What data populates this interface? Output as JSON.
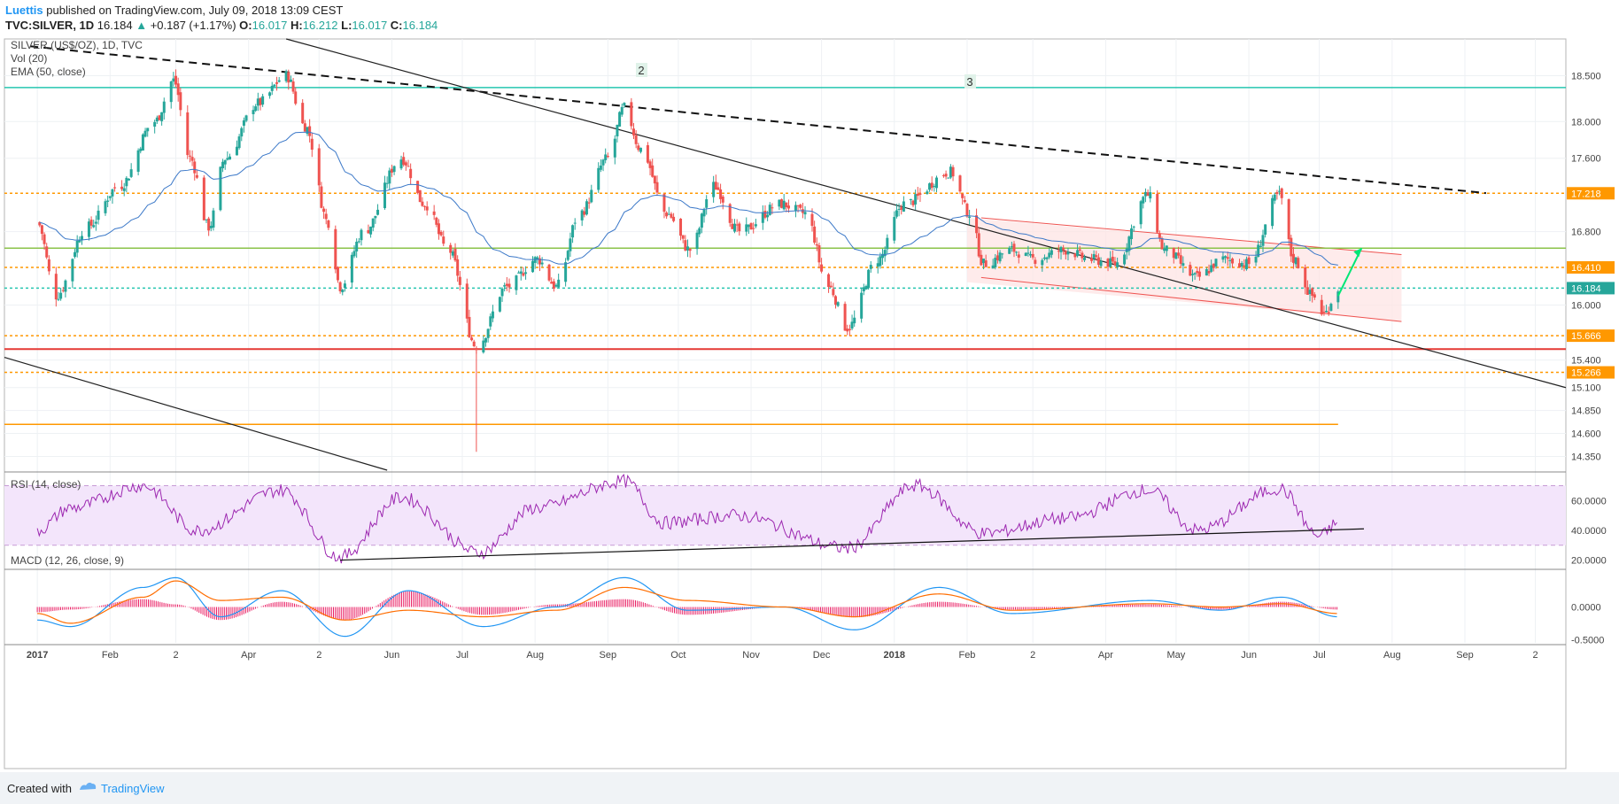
{
  "header": {
    "author": "Luettis",
    "published": "published on TradingView.com, July 09, 2018 13:09 CEST",
    "symbol": "TVC:SILVER, 1D",
    "last": "16.184",
    "change_arrow": "▲",
    "change": "+0.187 (+1.17%)",
    "o_label": "O:",
    "o": "16.017",
    "h_label": "H:",
    "h": "16.212",
    "l_label": "L:",
    "l": "16.017",
    "c_label": "C:",
    "c": "16.184"
  },
  "legend": {
    "main": "SILVER (US$/OZ), 1D, TVC",
    "vol": "Vol (20)",
    "ema": "EMA (50, close)",
    "rsi": "RSI (14, close)",
    "macd": "MACD (12, 26, close, 9)"
  },
  "annotations": {
    "wave2": "2",
    "wave3": "3"
  },
  "footer": {
    "created": "Created with",
    "brand": "TradingView"
  },
  "colors": {
    "up": "#26a69a",
    "down": "#ef5350",
    "ema": "#3b78c8",
    "level_orange": "#ff9800",
    "resistance_teal": "#26c6b0",
    "support_red": "#e53935",
    "green_line": "#8bc34a",
    "channel_fill": "#fde4e4",
    "rsi_line": "#9c27b0",
    "rsi_band": "#f3e5fb",
    "macd_line": "#2196f3",
    "signal_line": "#ff6d00",
    "hist": "#e91e63"
  },
  "chart_data": [
    {
      "type": "candlestick",
      "title": "SILVER (US$/OZ), 1D, TVC",
      "x_ticks": [
        "2017",
        "Feb",
        "2",
        "Apr",
        "2",
        "Jun",
        "Jul",
        "Aug",
        "Sep",
        "Oct",
        "Nov",
        "Dec",
        "2018",
        "Feb",
        "2",
        "Apr",
        "May",
        "Jun",
        "Jul",
        "Aug",
        "Sep",
        "2"
      ],
      "y_ticks": [
        "18.500",
        "18.000",
        "17.600",
        "16.800",
        "16.000",
        "15.400",
        "15.100",
        "14.850",
        "14.600",
        "14.350"
      ],
      "ylim": [
        14.2,
        18.9
      ],
      "horizontal_levels": [
        {
          "value": 18.37,
          "style": "solid",
          "color": "teal"
        },
        {
          "value": 17.218,
          "style": "dotted",
          "color": "orange",
          "label": "17.218"
        },
        {
          "value": 16.62,
          "style": "solid",
          "color": "green"
        },
        {
          "value": 16.41,
          "style": "dotted",
          "color": "orange",
          "label": "16.410"
        },
        {
          "value": 16.184,
          "style": "dotted",
          "color": "teal",
          "label": "16.184"
        },
        {
          "value": 15.666,
          "style": "dotted",
          "color": "orange",
          "label": "15.666"
        },
        {
          "value": 15.52,
          "style": "solid",
          "color": "red"
        },
        {
          "value": 15.266,
          "style": "dotted",
          "color": "orange",
          "label": "15.266"
        },
        {
          "value": 14.7,
          "style": "solid",
          "color": "orange"
        }
      ],
      "anchor_points": [
        {
          "date": "2017-01-01",
          "close": 16.9
        },
        {
          "date": "2017-01-09",
          "close": 16.1
        },
        {
          "date": "2017-01-22",
          "close": 16.85
        },
        {
          "date": "2017-02-05",
          "close": 17.3
        },
        {
          "date": "2017-02-20",
          "close": 18.0
        },
        {
          "date": "2017-02-28",
          "close": 18.45
        },
        {
          "date": "2017-03-07",
          "close": 17.6
        },
        {
          "date": "2017-03-15",
          "close": 16.85
        },
        {
          "date": "2017-03-22",
          "close": 17.6
        },
        {
          "date": "2017-04-05",
          "close": 18.2
        },
        {
          "date": "2017-04-17",
          "close": 18.5
        },
        {
          "date": "2017-04-25",
          "close": 17.95
        },
        {
          "date": "2017-05-05",
          "close": 16.9
        },
        {
          "date": "2017-05-10",
          "close": 16.2
        },
        {
          "date": "2017-05-20",
          "close": 16.8
        },
        {
          "date": "2017-06-05",
          "close": 17.6
        },
        {
          "date": "2017-06-15",
          "close": 17.1
        },
        {
          "date": "2017-06-25",
          "close": 16.6
        },
        {
          "date": "2017-07-07",
          "close": 15.55
        },
        {
          "date": "2017-07-20",
          "close": 16.2
        },
        {
          "date": "2017-08-02",
          "close": 16.5
        },
        {
          "date": "2017-08-10",
          "close": 16.2
        },
        {
          "date": "2017-08-20",
          "close": 17.0
        },
        {
          "date": "2017-09-01",
          "close": 17.6
        },
        {
          "date": "2017-09-08",
          "close": 18.15
        },
        {
          "date": "2017-09-15",
          "close": 17.7
        },
        {
          "date": "2017-09-26",
          "close": 17.0
        },
        {
          "date": "2017-10-06",
          "close": 16.6
        },
        {
          "date": "2017-10-16",
          "close": 17.3
        },
        {
          "date": "2017-10-27",
          "close": 16.8
        },
        {
          "date": "2017-11-14",
          "close": 17.1
        },
        {
          "date": "2017-11-24",
          "close": 17.0
        },
        {
          "date": "2017-12-04",
          "close": 16.2
        },
        {
          "date": "2017-12-12",
          "close": 15.75
        },
        {
          "date": "2017-12-25",
          "close": 16.5
        },
        {
          "date": "2018-01-05",
          "close": 17.1
        },
        {
          "date": "2018-01-25",
          "close": 17.45
        },
        {
          "date": "2018-02-02",
          "close": 17.0
        },
        {
          "date": "2018-02-08",
          "close": 16.45
        },
        {
          "date": "2018-02-20",
          "close": 16.6
        },
        {
          "date": "2018-03-01",
          "close": 16.5
        },
        {
          "date": "2018-03-15",
          "close": 16.6
        },
        {
          "date": "2018-03-25",
          "close": 16.5
        },
        {
          "date": "2018-04-05",
          "close": 16.45
        },
        {
          "date": "2018-04-19",
          "close": 17.2
        },
        {
          "date": "2018-04-26",
          "close": 16.6
        },
        {
          "date": "2018-05-10",
          "close": 16.3
        },
        {
          "date": "2018-05-21",
          "close": 16.5
        },
        {
          "date": "2018-06-01",
          "close": 16.45
        },
        {
          "date": "2018-06-14",
          "close": 17.2
        },
        {
          "date": "2018-06-20",
          "close": 16.5
        },
        {
          "date": "2018-06-28",
          "close": 16.1
        },
        {
          "date": "2018-07-03",
          "close": 15.9
        },
        {
          "date": "2018-07-09",
          "close": 16.184
        }
      ]
    },
    {
      "type": "line",
      "title": "RSI (14, close)",
      "y_ticks": [
        "60.0000",
        "40.0000",
        "20.0000"
      ],
      "ylim": [
        15,
        78
      ],
      "band": [
        30,
        70
      ],
      "anchor_points": [
        {
          "date": "2017-01-01",
          "value": 40
        },
        {
          "date": "2017-01-15",
          "value": 55
        },
        {
          "date": "2017-02-15",
          "value": 70
        },
        {
          "date": "2017-03-10",
          "value": 40
        },
        {
          "date": "2017-04-15",
          "value": 67
        },
        {
          "date": "2017-05-10",
          "value": 22
        },
        {
          "date": "2017-06-05",
          "value": 62
        },
        {
          "date": "2017-07-08",
          "value": 25
        },
        {
          "date": "2017-08-01",
          "value": 55
        },
        {
          "date": "2017-09-08",
          "value": 73
        },
        {
          "date": "2017-09-25",
          "value": 45
        },
        {
          "date": "2017-10-25",
          "value": 50
        },
        {
          "date": "2017-12-12",
          "value": 28
        },
        {
          "date": "2018-01-10",
          "value": 70
        },
        {
          "date": "2018-02-08",
          "value": 38
        },
        {
          "date": "2018-03-15",
          "value": 48
        },
        {
          "date": "2018-04-19",
          "value": 67
        },
        {
          "date": "2018-05-10",
          "value": 40
        },
        {
          "date": "2018-06-14",
          "value": 68
        },
        {
          "date": "2018-07-01",
          "value": 36
        },
        {
          "date": "2018-07-09",
          "value": 45
        }
      ]
    },
    {
      "type": "line",
      "title": "MACD (12, 26, close, 9)",
      "y_ticks": [
        "0.0000",
        "-0.5000"
      ],
      "ylim": [
        -0.55,
        0.55
      ],
      "anchor_points": [
        {
          "date": "2017-01-01",
          "macd": -0.2,
          "signal": -0.1
        },
        {
          "date": "2017-01-15",
          "macd": -0.3,
          "signal": -0.25
        },
        {
          "date": "2017-02-15",
          "macd": 0.3,
          "signal": 0.15
        },
        {
          "date": "2017-03-01",
          "macd": 0.45,
          "signal": 0.4
        },
        {
          "date": "2017-03-20",
          "macd": -0.15,
          "signal": 0.1
        },
        {
          "date": "2017-04-15",
          "macd": 0.25,
          "signal": 0.15
        },
        {
          "date": "2017-05-12",
          "macd": -0.45,
          "signal": -0.2
        },
        {
          "date": "2017-06-08",
          "macd": 0.25,
          "signal": -0.05
        },
        {
          "date": "2017-07-10",
          "macd": -0.3,
          "signal": -0.15
        },
        {
          "date": "2017-08-10",
          "macd": 0.0,
          "signal": -0.05
        },
        {
          "date": "2017-09-08",
          "macd": 0.45,
          "signal": 0.3
        },
        {
          "date": "2017-10-05",
          "macd": -0.05,
          "signal": 0.1
        },
        {
          "date": "2017-11-15",
          "macd": 0.0,
          "signal": 0.0
        },
        {
          "date": "2017-12-15",
          "macd": -0.35,
          "signal": -0.15
        },
        {
          "date": "2018-01-20",
          "macd": 0.3,
          "signal": 0.2
        },
        {
          "date": "2018-02-20",
          "macd": -0.1,
          "signal": -0.05
        },
        {
          "date": "2018-04-20",
          "macd": 0.1,
          "signal": 0.05
        },
        {
          "date": "2018-05-20",
          "macd": -0.05,
          "signal": 0.0
        },
        {
          "date": "2018-06-15",
          "macd": 0.15,
          "signal": 0.05
        },
        {
          "date": "2018-07-09",
          "macd": -0.15,
          "signal": -0.1
        }
      ]
    }
  ]
}
